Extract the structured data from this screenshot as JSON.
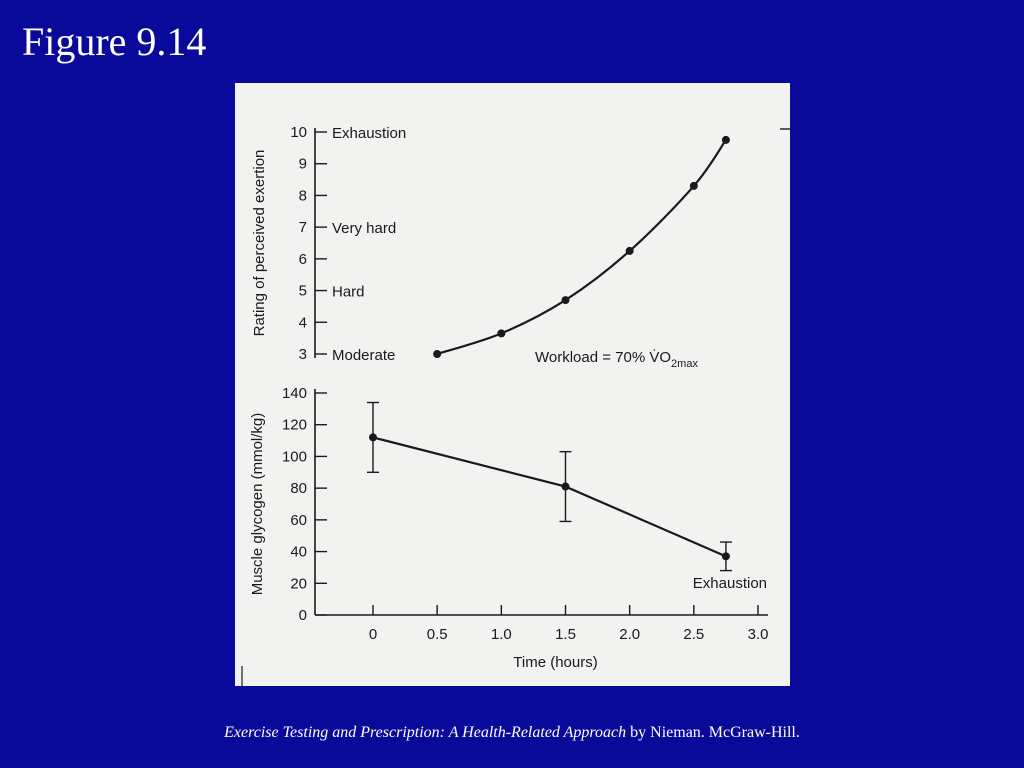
{
  "slide": {
    "title": "Figure 9.14",
    "caption_book": "Exercise Testing and Prescription:  A Health-Related Approach",
    "caption_rest": " by Nieman.  McGraw-Hill."
  },
  "colors": {
    "background": "#0a0a9a",
    "panel": "#f2f2f0",
    "ink": "#1a1a1a",
    "text": "#ffffff"
  },
  "chart_data": [
    {
      "type": "line",
      "ylabel": "Rating of perceived exertion",
      "ylim": [
        3,
        10
      ],
      "yticks": [
        3,
        4,
        5,
        6,
        7,
        8,
        9,
        10
      ],
      "ytick_labels": [
        {
          "value": 10,
          "label": "Exhaustion"
        },
        {
          "value": 7,
          "label": "Very hard"
        },
        {
          "value": 5,
          "label": "Hard"
        },
        {
          "value": 3,
          "label": "Moderate"
        }
      ],
      "annotation": {
        "text": "Workload = 70% V̇O",
        "sub": "2max"
      },
      "x": [
        0.5,
        1.0,
        1.5,
        2.0,
        2.5,
        2.75
      ],
      "y": [
        3.0,
        3.65,
        4.7,
        6.25,
        8.3,
        9.75
      ]
    },
    {
      "type": "line",
      "ylabel": "Muscle glycogen (mmol/kg)",
      "ylim": [
        0,
        140
      ],
      "yticks": [
        0,
        20,
        40,
        60,
        80,
        100,
        120,
        140
      ],
      "xlabel": "Time (hours)",
      "xlim": [
        0,
        3.0
      ],
      "xticks": [
        "0",
        "0.5",
        "1.0",
        "1.5",
        "2.0",
        "2.5",
        "3.0"
      ],
      "annotation": {
        "text": "Exhaustion"
      },
      "x": [
        0,
        1.5,
        2.75
      ],
      "y": [
        112,
        81,
        37
      ],
      "error": [
        22,
        22,
        9
      ]
    }
  ]
}
